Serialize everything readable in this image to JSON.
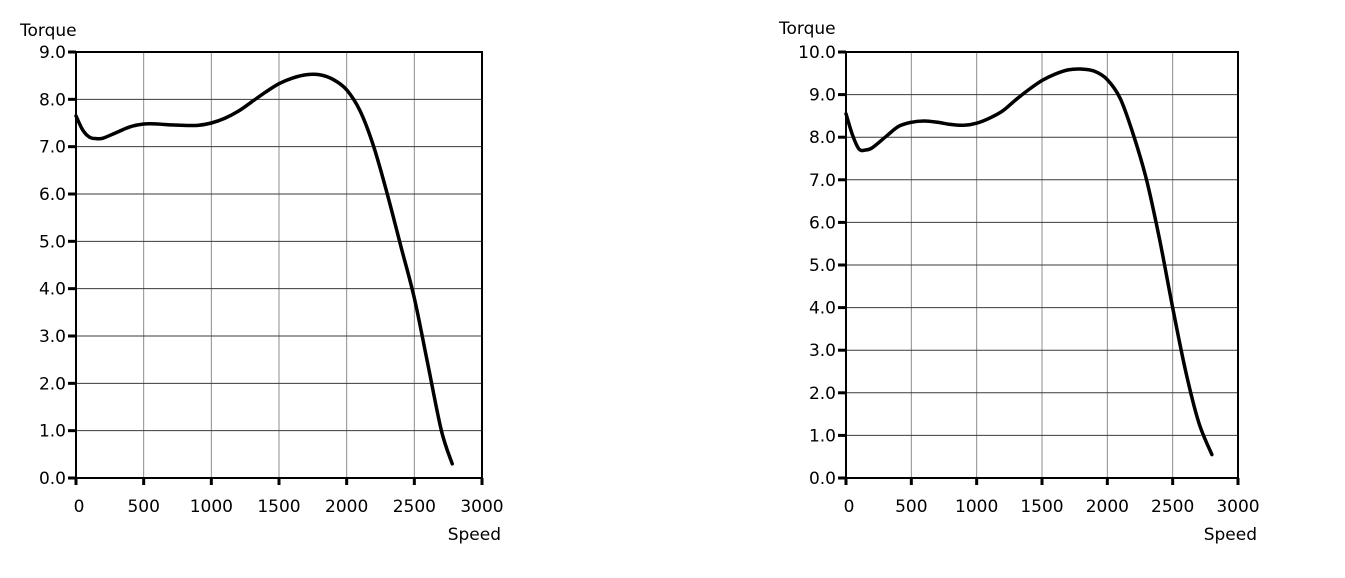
{
  "chart_data": [
    {
      "type": "line",
      "title": "",
      "xlabel": "Speed",
      "ylabel": "Torque",
      "xlim": [
        0,
        3000
      ],
      "ylim": [
        0,
        9
      ],
      "xticks": [
        0,
        500,
        1000,
        1500,
        2000,
        2500,
        3000
      ],
      "xtick_labels": [
        "0",
        "500",
        "1000",
        "1500",
        "2000",
        "2500",
        "3000"
      ],
      "yticks": [
        0,
        1,
        2,
        3,
        4,
        5,
        6,
        7,
        8,
        9
      ],
      "ytick_labels": [
        "0.0",
        "1.0",
        "2.0",
        "3.0",
        "4.0",
        "5.0",
        "6.0",
        "7.0",
        "8.0",
        "9.0"
      ],
      "grid": true,
      "line_color": "#000000",
      "series": [
        {
          "x": [
            0,
            50,
            100,
            150,
            200,
            300,
            400,
            500,
            600,
            700,
            800,
            900,
            1000,
            1100,
            1200,
            1300,
            1400,
            1500,
            1600,
            1700,
            1800,
            1900,
            2000,
            2100,
            2200,
            2300,
            2400,
            2500,
            2600,
            2700,
            2780
          ],
          "y": [
            7.65,
            7.35,
            7.2,
            7.17,
            7.18,
            7.3,
            7.42,
            7.48,
            7.48,
            7.46,
            7.45,
            7.45,
            7.5,
            7.6,
            7.75,
            7.95,
            8.15,
            8.33,
            8.45,
            8.52,
            8.52,
            8.42,
            8.2,
            7.75,
            7.0,
            6.0,
            4.9,
            3.8,
            2.4,
            1.0,
            0.3
          ]
        }
      ]
    },
    {
      "type": "line",
      "title": "",
      "xlabel": "Speed",
      "ylabel": "Torque",
      "xlim": [
        0,
        3000
      ],
      "ylim": [
        0,
        10
      ],
      "xticks": [
        0,
        500,
        1000,
        1500,
        2000,
        2500,
        3000
      ],
      "xtick_labels": [
        "0",
        "500",
        "1000",
        "1500",
        "2000",
        "2500",
        "3000"
      ],
      "yticks": [
        0,
        1,
        2,
        3,
        4,
        5,
        6,
        7,
        8,
        9,
        10
      ],
      "ytick_labels": [
        "0.0",
        "1.0",
        "2.0",
        "3.0",
        "4.0",
        "5.0",
        "6.0",
        "7.0",
        "8.0",
        "9.0",
        "10.0"
      ],
      "grid": true,
      "line_color": "#000000",
      "series": [
        {
          "x": [
            0,
            50,
            100,
            150,
            200,
            300,
            400,
            500,
            600,
            700,
            800,
            900,
            1000,
            1100,
            1200,
            1300,
            1400,
            1500,
            1600,
            1700,
            1800,
            1900,
            2000,
            2100,
            2200,
            2300,
            2400,
            2500,
            2600,
            2700,
            2800
          ],
          "y": [
            8.55,
            8.05,
            7.72,
            7.7,
            7.75,
            8.0,
            8.25,
            8.35,
            8.38,
            8.35,
            8.3,
            8.28,
            8.33,
            8.45,
            8.62,
            8.88,
            9.12,
            9.33,
            9.48,
            9.58,
            9.6,
            9.55,
            9.35,
            8.9,
            8.05,
            7.0,
            5.6,
            4.0,
            2.5,
            1.3,
            0.55
          ]
        }
      ]
    }
  ]
}
